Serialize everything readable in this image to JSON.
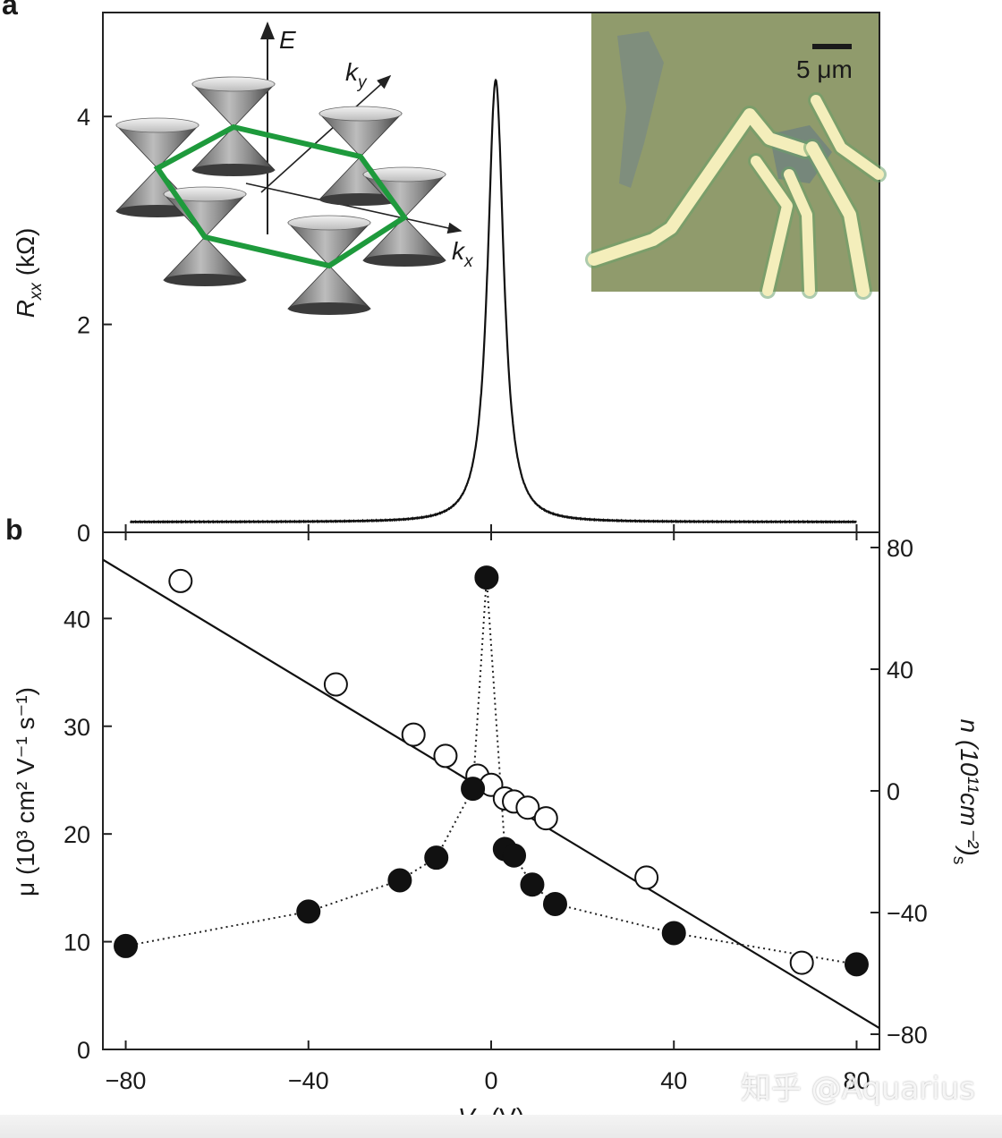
{
  "chart_data": [
    {
      "panel": "a",
      "type": "line",
      "xlabel": "V_g (V)",
      "ylabel": "R_xx (kΩ)",
      "xlim": [
        -85,
        85
      ],
      "ylim": [
        0,
        5
      ],
      "yticks": [
        0,
        2,
        4
      ],
      "series": [
        {
          "name": "R_xx",
          "shape": "lorentzian",
          "x0": 1,
          "peak": 4.35,
          "baseline": 0.1,
          "halfwidth": 2.2,
          "x_range": [
            -79,
            80
          ]
        }
      ],
      "insets": {
        "band_diagram": {
          "axis_labels": {
            "E": "E",
            "kx": "k",
            "kx_sub": "x",
            "ky": "k",
            "ky_sub": "y"
          }
        },
        "micrograph": {
          "scalebar_label": "5 μm",
          "colors": {
            "substrate": "#8f9a6a",
            "flake": "#7f8d83",
            "electrode": "#f2ecb8"
          }
        }
      }
    },
    {
      "panel": "b",
      "type": "scatter",
      "xlabel": "V_g (V)",
      "xticks": [
        -80,
        -40,
        0,
        40,
        80
      ],
      "xlim": [
        -85,
        85
      ],
      "left_axis": {
        "label": "μ (10^3 cm^2 V^-1 s^-1)",
        "ylim": [
          0,
          48
        ],
        "ticks": [
          0,
          10,
          20,
          30,
          40
        ]
      },
      "right_axis": {
        "label": "n_s (10^11 cm^-2)",
        "ylim": [
          -85,
          85
        ],
        "ticks": [
          80,
          40,
          0,
          -40,
          -80
        ],
        "tick_labels": [
          "80",
          "40",
          "0",
          "−40",
          "−80"
        ]
      },
      "series": [
        {
          "name": "mobility",
          "marker": "filled-circle",
          "axis": "left",
          "connect": "dotted",
          "x": [
            -80,
            -40,
            -20,
            -12,
            -4,
            -1,
            3,
            5,
            9,
            14,
            40,
            80
          ],
          "y": [
            9.6,
            12.8,
            15.7,
            17.8,
            24.2,
            43.8,
            18.6,
            18.0,
            15.3,
            13.5,
            10.8,
            7.9
          ]
        },
        {
          "name": "carrier density",
          "marker": "open-circle",
          "axis": "right",
          "x": [
            -68,
            -34,
            -17,
            -10,
            -3,
            0,
            3,
            5,
            8,
            12,
            34,
            68
          ],
          "y": [
            69,
            35,
            18.5,
            11.5,
            5,
            2,
            -2.5,
            -3.5,
            -5.5,
            -9,
            -28.5,
            -56.5
          ]
        },
        {
          "name": "linear fit",
          "line": "solid",
          "axis": "right",
          "x": [
            -85,
            85
          ],
          "y": [
            76,
            -78
          ]
        }
      ]
    }
  ],
  "labels": {
    "panel_a": "a",
    "panel_b": "b",
    "a_ylabel_R": "R",
    "a_ylabel_sub": "xx",
    "a_ylabel_unit": " (kΩ)",
    "b_ylabel_left": "μ (10³ cm² V⁻¹ s⁻¹)",
    "b_ylabel_right": "n (10¹¹cm⁻²)",
    "b_ylabel_right_sub": "s",
    "xlabel_V": "V",
    "xlabel_sub": "g",
    "xlabel_unit": " (V)"
  },
  "watermark": "知乎 @Aquarius",
  "colors": {
    "hexagon": "#1e9a3c",
    "cone_light": "#e6e6e6",
    "cone_dark": "#3a3a3a",
    "line": "#111111"
  }
}
